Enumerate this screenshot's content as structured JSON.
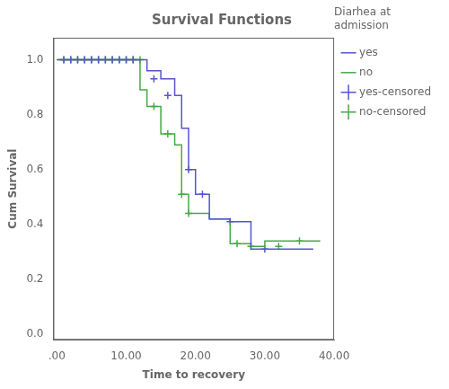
{
  "chart_data": {
    "type": "line",
    "title": "Survival Functions",
    "xlabel": "Time to recovery",
    "ylabel": "Cum Survival",
    "legend_title": "Diarhea at\nadmission",
    "legend": "right",
    "grid": false,
    "xlim": [
      -0.5,
      40
    ],
    "ylim": [
      -0.02,
      1.08
    ],
    "xticks": [
      {
        "value": 0,
        "label": ".00"
      },
      {
        "value": 10,
        "label": "10.00"
      },
      {
        "value": 20,
        "label": "20.00"
      },
      {
        "value": 30,
        "label": "30.00"
      },
      {
        "value": 40,
        "label": "40.00"
      }
    ],
    "yticks": [
      {
        "value": 0,
        "label": "0.0"
      },
      0.2,
      0.4,
      0.6,
      0.8,
      {
        "value": 1,
        "label": "1.0"
      }
    ],
    "series": [
      {
        "name": "yes",
        "type": "line",
        "color": "#5555cc",
        "x": [
          0,
          13,
          13,
          15,
          15,
          17,
          17,
          18,
          18,
          19,
          19,
          20,
          20,
          22,
          22,
          25,
          25,
          28,
          28,
          37
        ],
        "values": [
          1.0,
          1.0,
          0.96,
          0.96,
          0.93,
          0.93,
          0.87,
          0.87,
          0.75,
          0.75,
          0.6,
          0.6,
          0.51,
          0.51,
          0.42,
          0.42,
          0.41,
          0.41,
          0.31,
          0.31
        ]
      },
      {
        "name": "no",
        "type": "line",
        "color": "#44aa44",
        "x": [
          0,
          12,
          12,
          13,
          13,
          15,
          15,
          17,
          17,
          18,
          18,
          19,
          19,
          22,
          22,
          25,
          25,
          28,
          28,
          30,
          30,
          38
        ],
        "values": [
          1.0,
          1.0,
          0.89,
          0.89,
          0.83,
          0.83,
          0.73,
          0.73,
          0.69,
          0.69,
          0.51,
          0.51,
          0.44,
          0.44,
          0.42,
          0.42,
          0.33,
          0.33,
          0.32,
          0.32,
          0.34,
          0.34
        ]
      },
      {
        "name": "yes-censored",
        "type": "scatter",
        "marker": "plus",
        "color": "#5555cc",
        "x": [
          1,
          2,
          3,
          4,
          5,
          6,
          7,
          8,
          9,
          10,
          11,
          14,
          16,
          19,
          21,
          25,
          30
        ],
        "values": [
          1.0,
          1.0,
          1.0,
          1.0,
          1.0,
          1.0,
          1.0,
          1.0,
          1.0,
          1.0,
          1.0,
          0.93,
          0.87,
          0.6,
          0.51,
          0.41,
          0.31
        ]
      },
      {
        "name": "no-censored",
        "type": "scatter",
        "marker": "plus",
        "color": "#44aa44",
        "x": [
          1,
          2,
          3,
          4,
          5,
          6,
          7,
          8,
          9,
          10,
          11,
          12,
          14,
          16,
          18,
          19,
          26,
          28,
          32,
          35
        ],
        "values": [
          1.0,
          1.0,
          1.0,
          1.0,
          1.0,
          1.0,
          1.0,
          1.0,
          1.0,
          1.0,
          1.0,
          1.0,
          0.83,
          0.73,
          0.51,
          0.44,
          0.33,
          0.32,
          0.32,
          0.34
        ]
      }
    ]
  }
}
